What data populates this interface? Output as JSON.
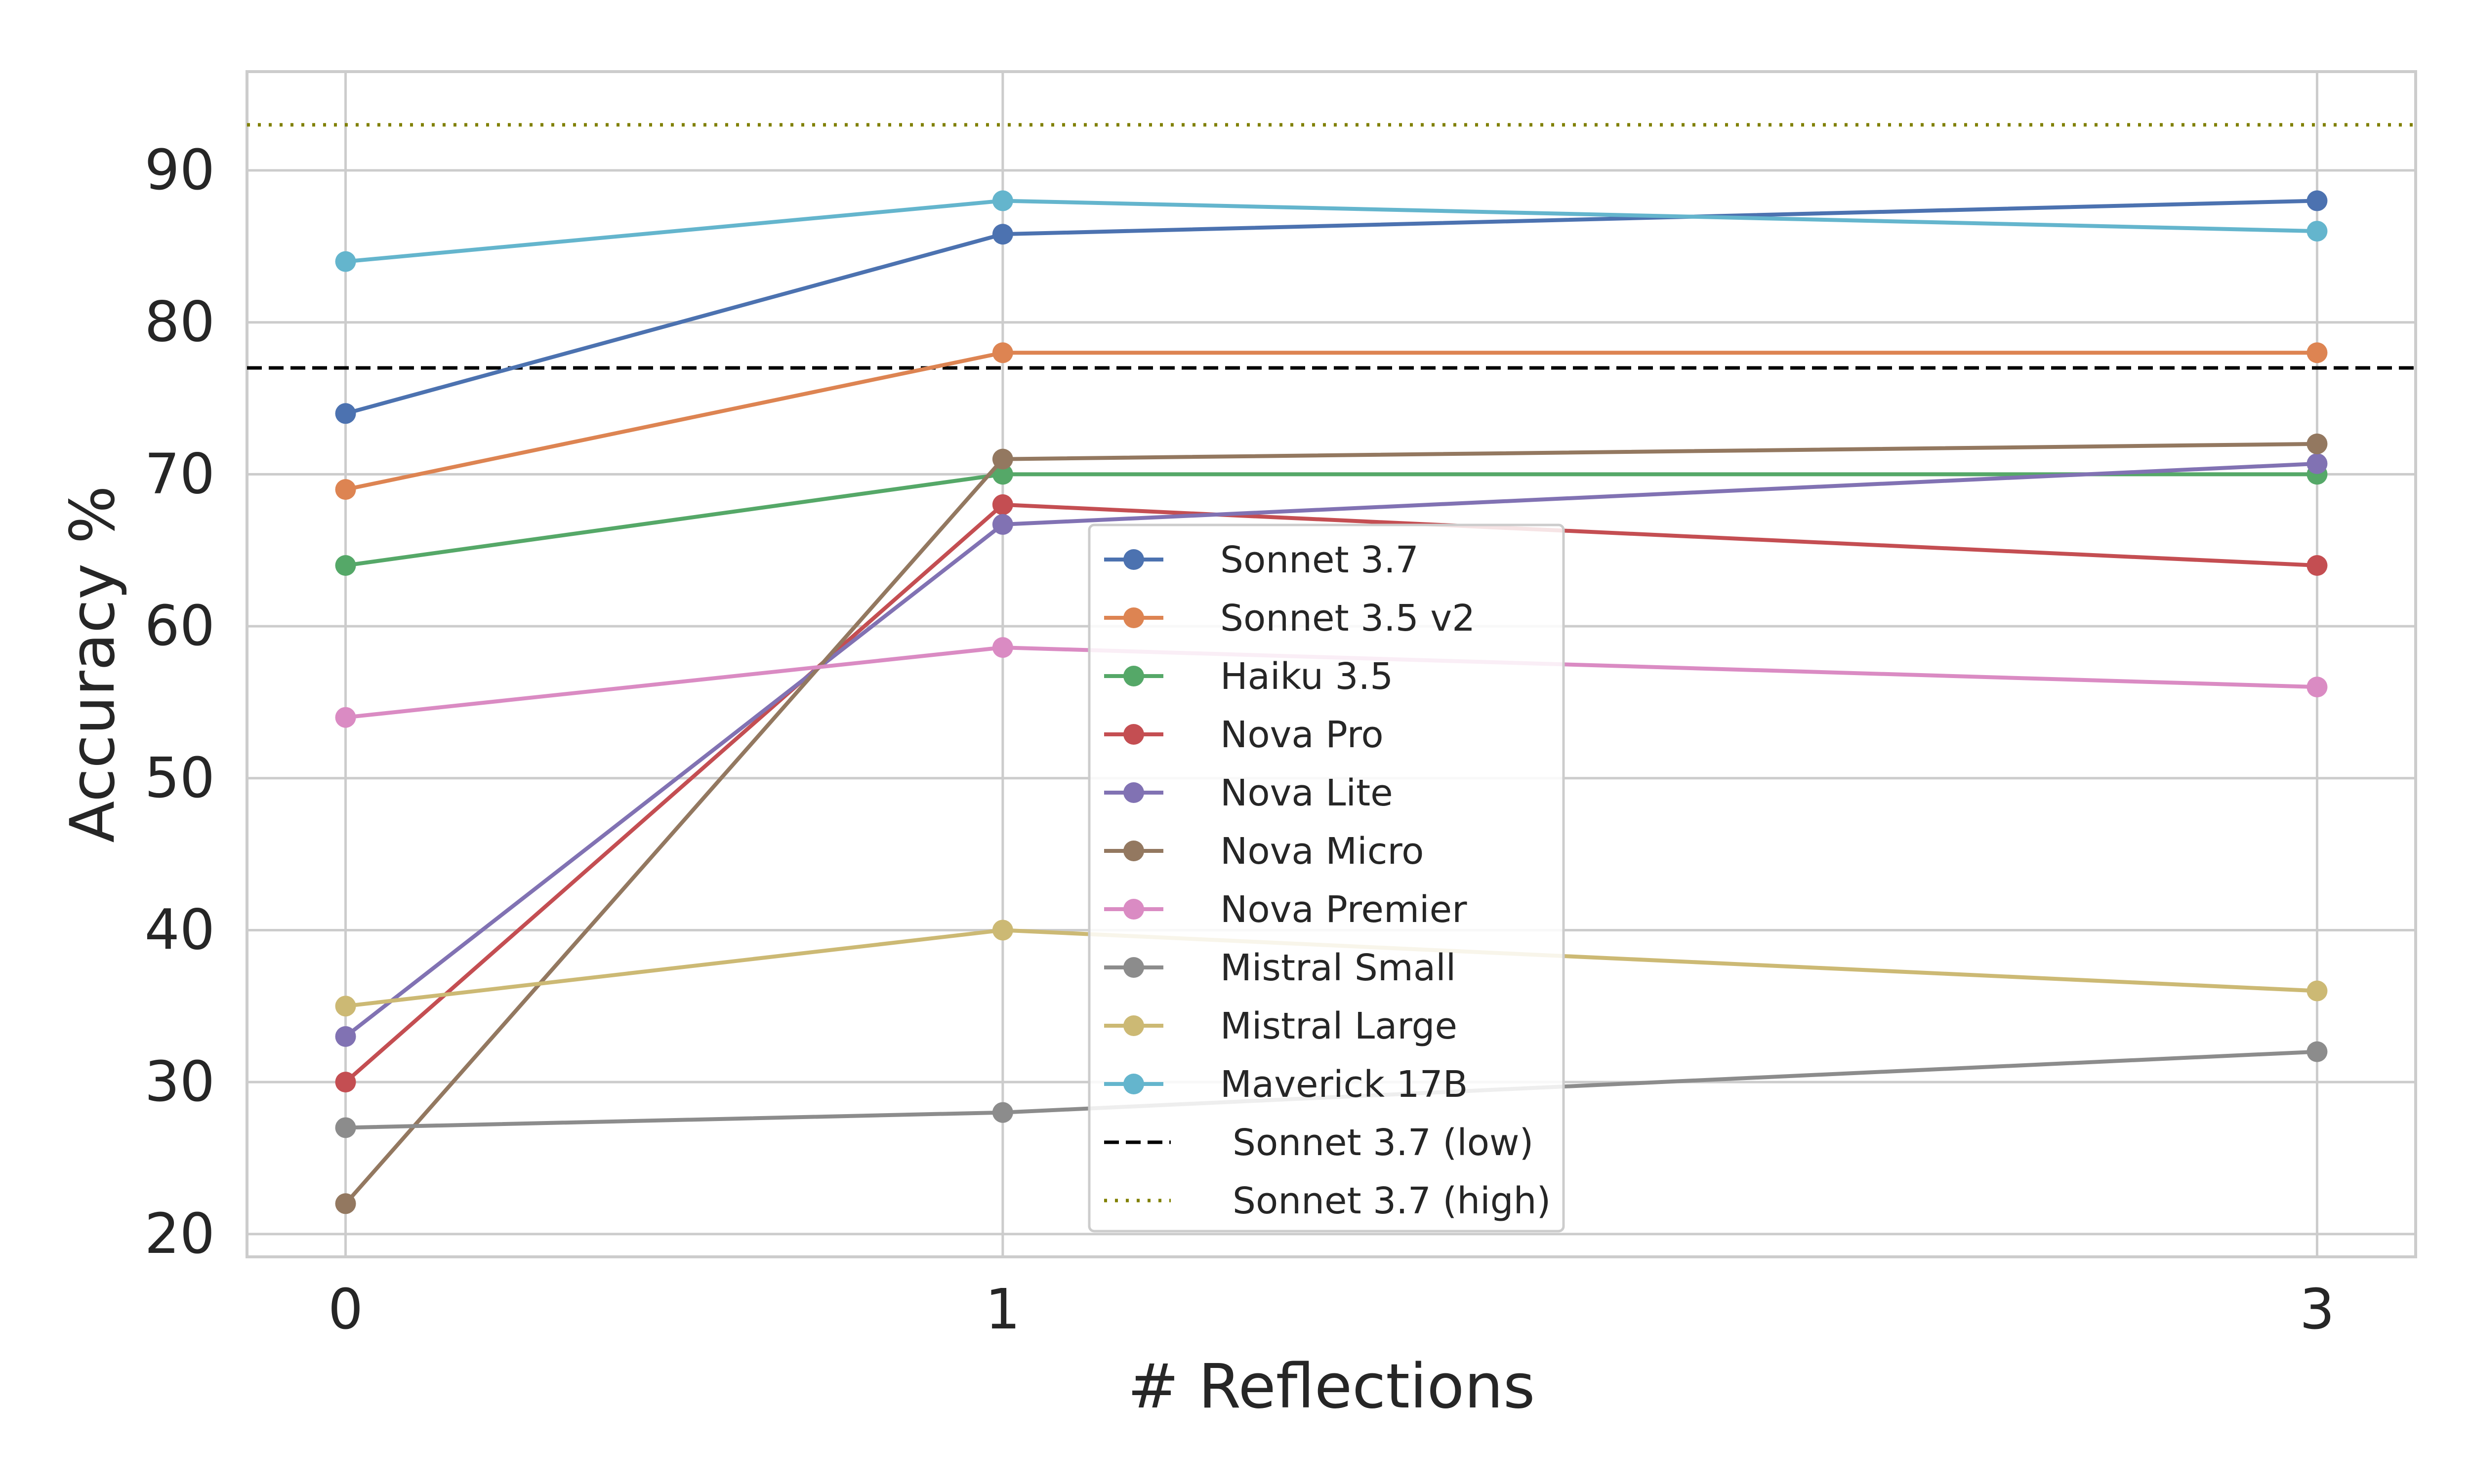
{
  "chart_data": {
    "type": "line",
    "title": "",
    "xlabel": "# Reflections",
    "ylabel": "Accuracy %",
    "x": [
      0,
      1,
      3
    ],
    "x_tick_labels": [
      "0",
      "1",
      "3"
    ],
    "y_ticks": [
      20,
      30,
      40,
      50,
      60,
      70,
      80,
      90
    ],
    "y_tick_labels": [
      "20",
      "30",
      "40",
      "50",
      "60",
      "70",
      "80",
      "90"
    ],
    "ylim": [
      18.5,
      96.5
    ],
    "grid": true,
    "legend_position": "center",
    "series": [
      {
        "name": "Sonnet 3.7",
        "color": "#4c72b0",
        "values": [
          74,
          85.8,
          88
        ]
      },
      {
        "name": "Sonnet 3.5 v2",
        "color": "#dd8452",
        "values": [
          69,
          78,
          78
        ]
      },
      {
        "name": "Haiku 3.5",
        "color": "#55a868",
        "values": [
          64,
          70,
          70
        ]
      },
      {
        "name": "Nova Pro",
        "color": "#c44e52",
        "values": [
          30,
          68,
          64
        ]
      },
      {
        "name": "Nova Lite",
        "color": "#8172b3",
        "values": [
          33,
          66.7,
          70.7
        ]
      },
      {
        "name": "Nova Micro",
        "color": "#937860",
        "values": [
          22,
          71,
          72
        ]
      },
      {
        "name": "Nova Premier",
        "color": "#da8bc3",
        "values": [
          54,
          58.6,
          56
        ]
      },
      {
        "name": "Mistral Small",
        "color": "#8c8c8c",
        "values": [
          27,
          28,
          32
        ]
      },
      {
        "name": "Mistral Large",
        "color": "#ccb974",
        "values": [
          35,
          40,
          36
        ]
      },
      {
        "name": "Maverick 17B",
        "color": "#64b5cd",
        "values": [
          84,
          88,
          86
        ]
      }
    ],
    "reference_lines": [
      {
        "name": "Sonnet 3.7 (low)",
        "value": 77,
        "color": "#000000",
        "style": "dashed"
      },
      {
        "name": "Sonnet 3.7 (high)",
        "value": 93,
        "color": "#808000",
        "style": "dotted"
      }
    ]
  }
}
